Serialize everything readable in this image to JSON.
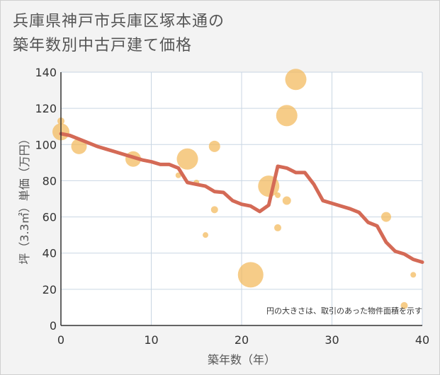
{
  "title_line1": "兵庫県神戸市兵庫区塚本通の",
  "title_line2": "築年数別中古戸建て価格",
  "chart_data": {
    "type": "scatter",
    "xlabel": "築年数（年）",
    "ylabel": "坪（3.3㎡）単価（万円）",
    "xlim": [
      0,
      40
    ],
    "ylim": [
      0,
      140
    ],
    "x_ticks": [
      0,
      10,
      20,
      30,
      40
    ],
    "y_ticks": [
      0,
      20,
      40,
      60,
      80,
      100,
      120,
      140
    ],
    "grid": true,
    "note": "円の大きさは、取引のあった物件面積を示す",
    "colors": {
      "bubble": "#f3b85a",
      "line": "#d46a56",
      "grid": "#c9d6e3"
    },
    "bubbles": [
      {
        "x": 0,
        "y": 113,
        "size": 5
      },
      {
        "x": 0,
        "y": 107,
        "size": 12
      },
      {
        "x": 2,
        "y": 99,
        "size": 11
      },
      {
        "x": 8,
        "y": 92,
        "size": 11
      },
      {
        "x": 13,
        "y": 83,
        "size": 4
      },
      {
        "x": 14,
        "y": 92,
        "size": 15
      },
      {
        "x": 15,
        "y": 79,
        "size": 4
      },
      {
        "x": 16,
        "y": 50,
        "size": 4
      },
      {
        "x": 17,
        "y": 99,
        "size": 8
      },
      {
        "x": 17,
        "y": 64,
        "size": 5
      },
      {
        "x": 21,
        "y": 28,
        "size": 18
      },
      {
        "x": 23,
        "y": 77,
        "size": 15
      },
      {
        "x": 24,
        "y": 72,
        "size": 4
      },
      {
        "x": 24,
        "y": 54,
        "size": 5
      },
      {
        "x": 25,
        "y": 116,
        "size": 15
      },
      {
        "x": 25,
        "y": 69,
        "size": 6
      },
      {
        "x": 26,
        "y": 136,
        "size": 15
      },
      {
        "x": 36,
        "y": 60,
        "size": 7
      },
      {
        "x": 38,
        "y": 11,
        "size": 5
      },
      {
        "x": 39,
        "y": 28,
        "size": 4
      }
    ],
    "trend": {
      "x": [
        0,
        1,
        2,
        3,
        4,
        5,
        6,
        7,
        8,
        9,
        10,
        11,
        12,
        13,
        14,
        15,
        16,
        17,
        18,
        19,
        20,
        21,
        22,
        23,
        24,
        25,
        26,
        27,
        28,
        29,
        30,
        31,
        32,
        33,
        34,
        35,
        36,
        37,
        38,
        39,
        40
      ],
      "y": [
        106,
        105,
        103,
        101,
        99,
        97.5,
        96,
        94.5,
        93,
        91.5,
        90.5,
        89,
        89,
        87,
        79,
        78,
        77,
        74,
        73.5,
        69,
        67,
        66,
        63,
        66.5,
        88,
        87,
        84.5,
        84.5,
        78,
        69,
        67.5,
        66,
        64.5,
        62.5,
        57,
        55,
        46,
        41,
        39.5,
        36.5,
        35
      ]
    }
  }
}
